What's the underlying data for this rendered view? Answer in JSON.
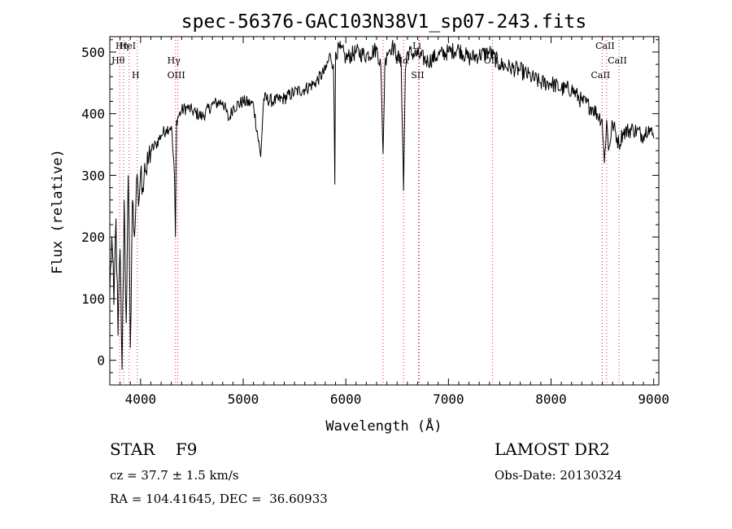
{
  "chart_data": {
    "type": "line",
    "title": "spec-56376-GAC103N38V1_sp07-243.fits",
    "xlabel": "Wavelength (Å)",
    "ylabel": "Flux (relative)",
    "xlim": [
      3700,
      9050
    ],
    "ylim": [
      -40,
      525
    ],
    "xticks": [
      4000,
      5000,
      6000,
      7000,
      8000,
      9000
    ],
    "yticks": [
      0,
      100,
      200,
      300,
      400,
      500
    ],
    "grid": false,
    "series": [
      {
        "x": [
          3700,
          3720,
          3740,
          3760,
          3780,
          3800,
          3820,
          3840,
          3860,
          3880,
          3900,
          3920,
          3940,
          3960,
          3980,
          4000,
          4020,
          4040,
          4060,
          4080,
          4100,
          4150,
          4200,
          4250,
          4300,
          4330,
          4340,
          4350,
          4400,
          4450,
          4500,
          4600,
          4700,
          4800,
          4860,
          4900,
          5000,
          5100,
          5170,
          5200,
          5300,
          5400,
          5500,
          5600,
          5700,
          5800,
          5850,
          5880,
          5893,
          5900,
          5950,
          6000,
          6100,
          6200,
          6300,
          6340,
          6363,
          6380,
          6400,
          6450,
          6500,
          6540,
          6563,
          6580,
          6600,
          6700,
          6800,
          6900,
          7000,
          7100,
          7200,
          7300,
          7400,
          7500,
          7600,
          7700,
          7800,
          7900,
          8000,
          8100,
          8200,
          8300,
          8400,
          8498,
          8520,
          8542,
          8560,
          8600,
          8662,
          8700,
          8800,
          8900,
          8950,
          9000
        ],
        "values": [
          110,
          200,
          90,
          230,
          40,
          180,
          -15,
          260,
          60,
          300,
          20,
          260,
          200,
          290,
          250,
          305,
          280,
          320,
          300,
          330,
          340,
          350,
          365,
          375,
          380,
          300,
          200,
          390,
          405,
          410,
          405,
          395,
          415,
          420,
          390,
          410,
          420,
          415,
          330,
          425,
          420,
          425,
          435,
          440,
          450,
          470,
          495,
          480,
          285,
          500,
          505,
          490,
          500,
          495,
          505,
          480,
          335,
          475,
          500,
          510,
          495,
          480,
          275,
          470,
          500,
          495,
          485,
          495,
          500,
          505,
          490,
          495,
          500,
          480,
          475,
          470,
          460,
          450,
          450,
          440,
          440,
          420,
          410,
          390,
          320,
          390,
          340,
          385,
          350,
          370,
          375,
          365,
          380,
          360
        ]
      }
    ],
    "lines": [
      {
        "label": "Hη",
        "x": 3835
      },
      {
        "label": "Hθ",
        "x": 3797
      },
      {
        "label": "H",
        "x": 3968
      },
      {
        "label": "HeI",
        "x": 3889
      },
      {
        "label": "Hγ",
        "x": 4340
      },
      {
        "label": "OIII",
        "x": 4363
      },
      {
        "label": "",
        "x": 6363
      },
      {
        "label": "Hα",
        "x": 6563
      },
      {
        "label": "SII",
        "x": 6716
      },
      {
        "label": "Li",
        "x": 6708
      },
      {
        "label": "OII",
        "x": 7430
      },
      {
        "label": "CaII",
        "x": 8498
      },
      {
        "label": "CaII",
        "x": 8542
      },
      {
        "label": "CaII",
        "x": 8662
      }
    ]
  },
  "footer": {
    "object": "STAR    F9",
    "survey": "LAMOST DR2",
    "cz": "cz = 37.7 ± 1.5 km/s",
    "obs_date": "Obs-Date: 20130324",
    "coords": "RA = 104.41645, DEC =  36.60933"
  }
}
